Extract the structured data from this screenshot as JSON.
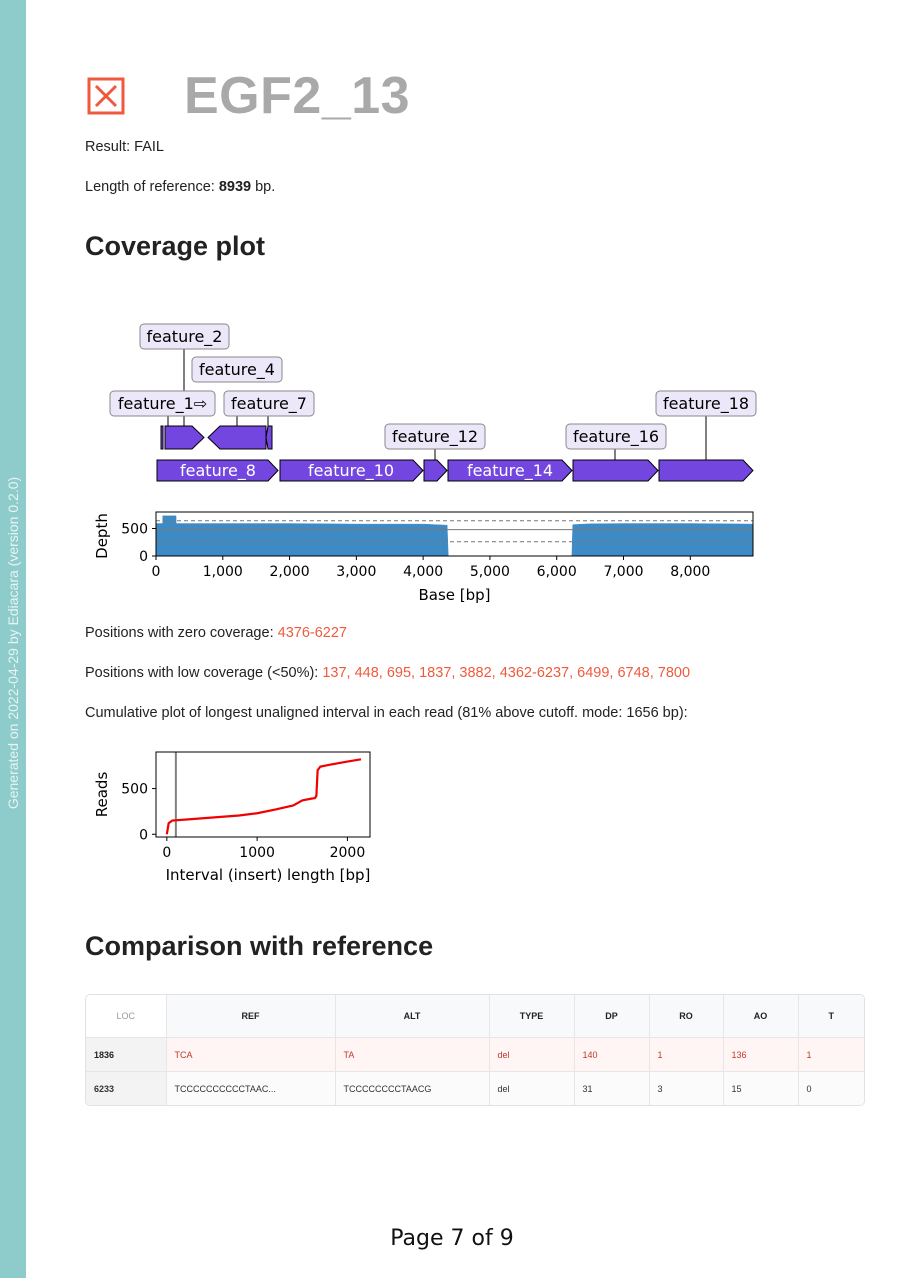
{
  "sidebar": {
    "generated_text": "Generated on 2022-04-29 by Ediacara (version 0.2.0)"
  },
  "header": {
    "title": "EGF2_13",
    "status_icon": "fail-box-x-icon",
    "fail_color": "#f05a3c"
  },
  "summary": {
    "result_label": "Result: ",
    "result_value": "FAIL",
    "length_label": "Length of reference: ",
    "length_value": "8939",
    "length_unit": " bp."
  },
  "coverage_section": {
    "heading": "Coverage plot",
    "features": [
      "feature_2",
      "feature_4",
      "feature_1⇨",
      "feature_7",
      "feature_18",
      "feature_12",
      "feature_16",
      "feature_8",
      "feature_10",
      "feature_14"
    ],
    "zero_label": "Positions with zero coverage: ",
    "zero_value": "4376-6227",
    "low_label": "Positions with low coverage (<50%): ",
    "low_value": "137, 448, 695, 1837, 3882, 4362-6237, 6499, 6748, 7800",
    "cumulative_text": "Cumulative plot of longest unaligned interval in each read (81% above cutoff. mode: 1656 bp):"
  },
  "chart_data": [
    {
      "type": "area",
      "xlabel": "Base [bp]",
      "ylabel": "Depth",
      "xlim": [
        0,
        8939
      ],
      "ylim": [
        0,
        800
      ],
      "xticks": [
        "0",
        "1,000",
        "2,000",
        "3,000",
        "4,000",
        "5,000",
        "6,000",
        "7,000",
        "8,000"
      ],
      "yticks": [
        "0",
        "500"
      ],
      "x": [
        0,
        100,
        101,
        300,
        301,
        1000,
        2000,
        3000,
        4000,
        4360,
        4376,
        6227,
        6240,
        6500,
        7000,
        8000,
        8939
      ],
      "y": [
        590,
        590,
        730,
        730,
        590,
        590,
        590,
        580,
        580,
        560,
        0,
        0,
        570,
        585,
        590,
        590,
        580
      ],
      "reference_lines": [
        {
          "value": 640,
          "style": "dashed"
        },
        {
          "value": 480,
          "style": "solid"
        },
        {
          "value": 260,
          "style": "dashed"
        }
      ],
      "color": "#3e8ac4"
    },
    {
      "type": "line",
      "xlabel": "Interval (insert) length [bp]",
      "ylabel": "Reads",
      "xlim": [
        -120,
        2250
      ],
      "ylim": [
        -30,
        900
      ],
      "xticks": [
        "0",
        "1000",
        "2000"
      ],
      "yticks": [
        "0",
        "500"
      ],
      "x": [
        0,
        20,
        60,
        200,
        400,
        600,
        800,
        1000,
        1200,
        1400,
        1500,
        1600,
        1640,
        1656,
        1670,
        1700,
        1800,
        2000,
        2150
      ],
      "y": [
        0,
        120,
        150,
        160,
        175,
        190,
        205,
        230,
        270,
        315,
        370,
        390,
        395,
        420,
        700,
        740,
        760,
        795,
        820
      ],
      "vline": 100,
      "color": "#f00000"
    }
  ],
  "comparison": {
    "heading": "Comparison with reference",
    "columns": [
      "LOC",
      "REF",
      "ALT",
      "TYPE",
      "DP",
      "RO",
      "AO",
      "T"
    ],
    "rows": [
      [
        "1836",
        "TCA",
        "TA",
        "del",
        "140",
        "1",
        "136",
        "1"
      ],
      [
        "6233",
        "TCCCCCCCCCCTAAC...",
        "TCCCCCCCCTAACG",
        "del",
        "31",
        "3",
        "15",
        "0"
      ]
    ]
  },
  "footer": {
    "page": "Page 7 of 9"
  }
}
